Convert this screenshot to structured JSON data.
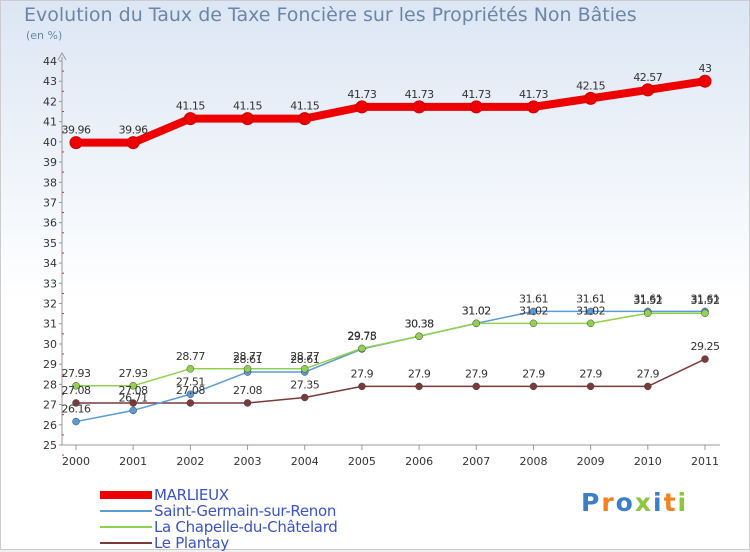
{
  "chart_data": {
    "type": "line",
    "title": "Evolution du Taux de Taxe Foncière sur les Propriétés Non Bâties",
    "unit_label": "(en %)",
    "categories": [
      "2000",
      "2001",
      "2002",
      "2003",
      "2004",
      "2005",
      "2006",
      "2007",
      "2008",
      "2009",
      "2010",
      "2011"
    ],
    "ylim": [
      25,
      44
    ],
    "yticks": [
      25,
      26,
      27,
      28,
      29,
      30,
      31,
      32,
      33,
      34,
      35,
      36,
      37,
      38,
      39,
      40,
      41,
      42,
      43,
      44
    ],
    "series": [
      {
        "name": "MARLIEUX",
        "color": "#ee0000",
        "values": [
          39.96,
          39.96,
          41.15,
          41.15,
          41.15,
          41.73,
          41.73,
          41.73,
          41.73,
          42.15,
          42.57,
          43
        ],
        "labels": [
          "39.96",
          "39.96",
          "41.15",
          "41.15",
          "41.15",
          "41.73",
          "41.73",
          "41.73",
          "41.73",
          "42.15",
          "42.57",
          "43"
        ]
      },
      {
        "name": "Saint-Germain-sur-Renon",
        "color": "#5b9bd5",
        "values": [
          26.16,
          26.71,
          27.51,
          28.61,
          28.61,
          29.75,
          30.38,
          31.02,
          31.61,
          31.61,
          31.61,
          31.61
        ],
        "labels": [
          "26.16",
          "26.71",
          "27.51",
          "28.61",
          "28.61",
          "29.75",
          "30.38",
          "31.02",
          "31.61",
          "31.61",
          "31.61",
          "31.61"
        ]
      },
      {
        "name": "La Chapelle-du-Châtelard",
        "color": "#92d050",
        "values": [
          27.93,
          27.93,
          28.77,
          28.77,
          28.77,
          29.78,
          30.38,
          31.02,
          31.02,
          31.02,
          31.52,
          31.52
        ],
        "labels": [
          "27.93",
          "27.93",
          "28.77",
          "28.77",
          "28.77",
          "29.78",
          "30.38",
          "31.02",
          "31.02",
          "31.02",
          "31.52",
          "31.52"
        ]
      },
      {
        "name": "Le Plantay",
        "color": "#7a3a3a",
        "values": [
          27.08,
          27.08,
          27.08,
          27.08,
          27.35,
          27.9,
          27.9,
          27.9,
          27.9,
          27.9,
          27.9,
          29.25
        ],
        "labels": [
          "27.08",
          "27.08",
          "27.08",
          "27.08",
          "27.35",
          "27.9",
          "27.9",
          "27.9",
          "27.9",
          "27.9",
          "27.9",
          "29.25"
        ]
      }
    ],
    "grid": false,
    "legend_position": "bottom-left"
  },
  "logo": {
    "letters": [
      "P",
      "r",
      "o",
      "x",
      "i",
      "t",
      "i"
    ],
    "colors": [
      "#3b7fc7",
      "#f58220",
      "#3b7fc7",
      "#8dc63f",
      "#3b7fc7",
      "#f58220",
      "#8dc63f"
    ]
  }
}
